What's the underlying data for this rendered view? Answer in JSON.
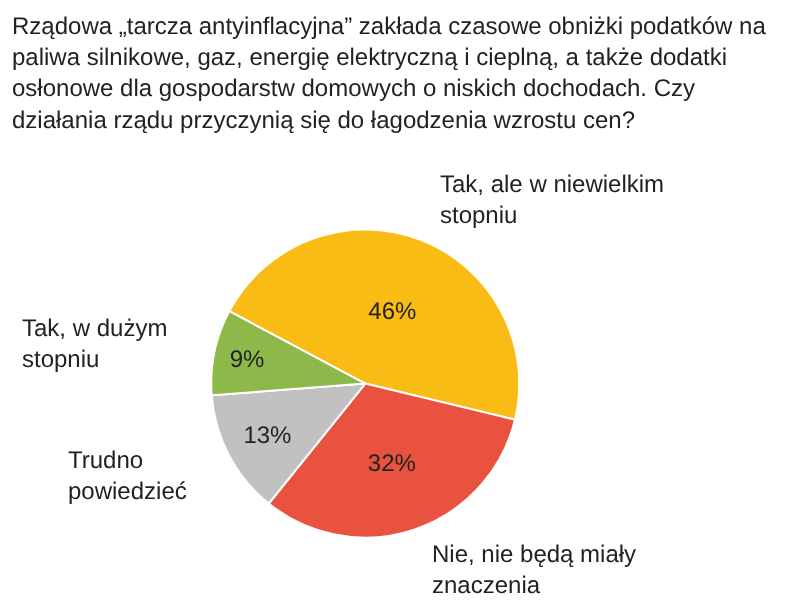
{
  "chart_data": {
    "type": "pie",
    "title": "Rządowa „tarcza antyinflacyjna” zakłada czasowe obniżki podatków na paliwa silnikowe, gaz, energię elektryczną i cieplną, a także dodatki osłonowe dla gospodarstw domowych o niskich dochodach. Czy działania rządu przyczynią się do łagodzenia wzrostu cen?",
    "categories": [
      "Tak, ale w niewielkim stopniu",
      "Nie, nie będą miały znaczenia",
      "Trudno powiedzieć",
      "Tak, w dużym stopniu"
    ],
    "values": [
      46,
      32,
      13,
      9
    ],
    "value_labels": [
      "46%",
      "32%",
      "13%",
      "9%"
    ],
    "colors": [
      "#f9bc15",
      "#e8523f",
      "#c1c1c1",
      "#8db84a"
    ],
    "legend": false
  }
}
